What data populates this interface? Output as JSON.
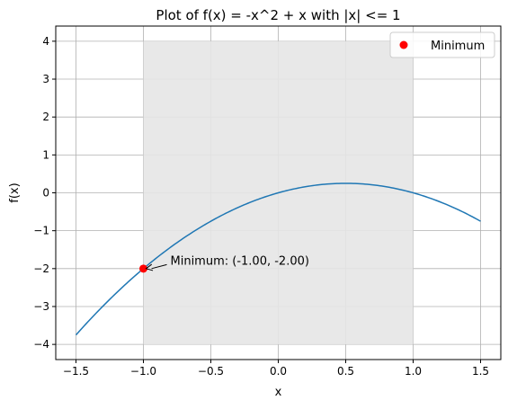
{
  "chart_data": {
    "type": "line",
    "title": "Plot of f(x) = -x^2 + x with |x| <= 1",
    "xlabel": "x",
    "ylabel": "f(x)",
    "xlim": [
      -1.65,
      1.65
    ],
    "ylim": [
      -4.4,
      4.4
    ],
    "xticks": [
      -1.5,
      -1.0,
      -0.5,
      0.0,
      0.5,
      1.0,
      1.5
    ],
    "xtick_labels": [
      "−1.5",
      "−1.0",
      "−0.5",
      "0.0",
      "0.5",
      "1.0",
      "1.5"
    ],
    "yticks": [
      -4,
      -3,
      -2,
      -1,
      0,
      1,
      2,
      3,
      4
    ],
    "ytick_labels": [
      "−4",
      "−3",
      "−2",
      "−1",
      "0",
      "1",
      "2",
      "3",
      "4"
    ],
    "grid": true,
    "legend_position": "top-right",
    "series": [
      {
        "function": "-x^2 + x",
        "x_range": [
          -1.5,
          1.5
        ],
        "color": "#1f77b4"
      }
    ],
    "shaded_region": {
      "x": [
        -1,
        1
      ],
      "y": [
        -4,
        4
      ],
      "color": "#e6e6e6"
    },
    "minimum_point": {
      "name": "Minimum",
      "x": -1.0,
      "y": -2.0,
      "color": "#ff0000"
    },
    "annotation": {
      "text": "Minimum: (-1.00, -2.00)",
      "text_x": -0.8,
      "text_y": -1.8,
      "arrow_to": [
        -1.0,
        -2.0
      ]
    }
  }
}
